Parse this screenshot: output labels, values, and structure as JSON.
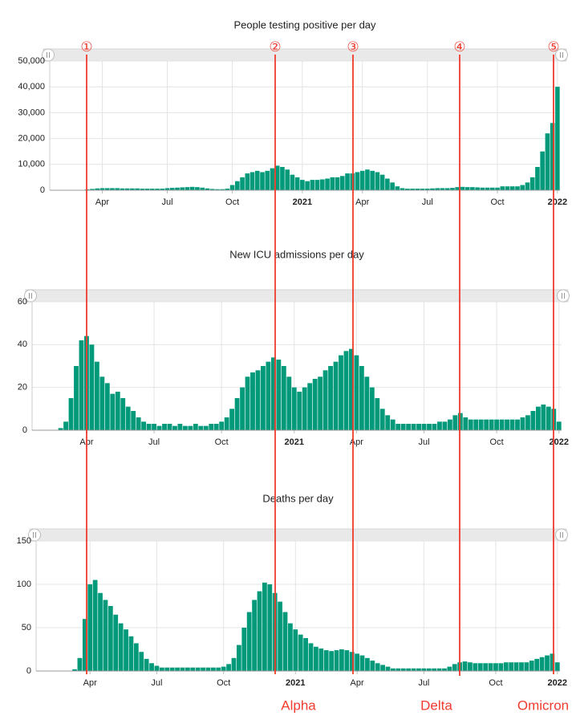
{
  "chart_data": [
    {
      "type": "bar",
      "title": "People testing positive per day",
      "color": "#009a7a",
      "grid": true,
      "ylim": [
        0,
        50000
      ],
      "yticks": [
        0,
        {
          "value": 10000,
          "label": "10,000"
        },
        {
          "value": 20000,
          "label": "20,000"
        },
        {
          "value": 30000,
          "label": "30,000"
        },
        {
          "value": 40000,
          "label": "40,000"
        },
        {
          "value": 50000,
          "label": "50,000"
        }
      ],
      "categories": [
        null,
        null,
        null,
        null,
        null,
        null,
        null,
        null,
        null,
        null,
        "Apr",
        null,
        null,
        null,
        null,
        null,
        null,
        null,
        null,
        null,
        null,
        null,
        null,
        "Jul",
        null,
        null,
        null,
        null,
        null,
        null,
        null,
        null,
        null,
        null,
        null,
        null,
        "Oct",
        null,
        null,
        null,
        null,
        null,
        null,
        null,
        null,
        null,
        null,
        null,
        null,
        null,
        "2021",
        null,
        null,
        null,
        null,
        null,
        null,
        null,
        null,
        null,
        null,
        null,
        "Apr",
        null,
        null,
        null,
        null,
        null,
        null,
        null,
        null,
        null,
        null,
        null,
        null,
        "Jul",
        null,
        null,
        null,
        null,
        null,
        null,
        null,
        null,
        null,
        null,
        null,
        null,
        null,
        "Oct",
        null,
        null,
        null,
        null,
        null,
        null,
        null,
        null,
        null,
        null,
        null,
        "2022"
      ],
      "values": [
        0,
        0,
        0,
        0,
        0,
        0,
        100,
        300,
        500,
        700,
        800,
        800,
        800,
        800,
        700,
        700,
        700,
        700,
        600,
        600,
        600,
        600,
        600,
        800,
        900,
        1000,
        1100,
        1200,
        1300,
        1200,
        1000,
        700,
        500,
        400,
        400,
        600,
        2000,
        3500,
        5000,
        6500,
        7000,
        7500,
        7000,
        7500,
        8500,
        9500,
        9000,
        8000,
        6000,
        5000,
        4000,
        3500,
        4000,
        4000,
        4200,
        4500,
        5000,
        5000,
        5500,
        6500,
        6500,
        7000,
        7500,
        8000,
        7500,
        7000,
        6000,
        4500,
        3000,
        1500,
        800,
        600,
        600,
        600,
        600,
        600,
        700,
        800,
        800,
        800,
        900,
        1200,
        1300,
        1200,
        1200,
        1100,
        1000,
        1000,
        1000,
        1000,
        1500,
        1500,
        1500,
        1500,
        2000,
        3000,
        5000,
        9000,
        15000,
        22000,
        26000,
        40000
      ]
    },
    {
      "type": "bar",
      "title": "New ICU admissions per day",
      "color": "#009a7a",
      "grid": true,
      "ylim": [
        0,
        60
      ],
      "yticks": [
        0,
        20,
        40,
        60
      ],
      "categories": [
        null,
        null,
        null,
        null,
        null,
        null,
        null,
        null,
        null,
        null,
        "Apr",
        null,
        null,
        null,
        null,
        null,
        null,
        null,
        null,
        null,
        null,
        null,
        null,
        "Jul",
        null,
        null,
        null,
        null,
        null,
        null,
        null,
        null,
        null,
        null,
        null,
        null,
        "Oct",
        null,
        null,
        null,
        null,
        null,
        null,
        null,
        null,
        null,
        null,
        null,
        null,
        null,
        "2021",
        null,
        null,
        null,
        null,
        null,
        null,
        null,
        null,
        null,
        null,
        null,
        "Apr",
        null,
        null,
        null,
        null,
        null,
        null,
        null,
        null,
        null,
        null,
        null,
        null,
        "Jul",
        null,
        null,
        null,
        null,
        null,
        null,
        null,
        null,
        null,
        null,
        null,
        null,
        null,
        "Oct",
        null,
        null,
        null,
        null,
        null,
        null,
        null,
        null,
        null,
        null,
        null,
        "2022"
      ],
      "values": [
        0,
        0,
        0,
        0,
        0,
        1,
        4,
        15,
        30,
        42,
        44,
        40,
        32,
        25,
        22,
        17,
        18,
        15,
        11,
        9,
        6,
        4,
        3,
        3,
        2,
        3,
        3,
        2,
        3,
        2,
        2,
        3,
        2,
        2,
        3,
        3,
        4,
        6,
        10,
        15,
        20,
        25,
        27,
        28,
        30,
        32,
        34,
        33,
        30,
        25,
        20,
        18,
        20,
        22,
        24,
        25,
        28,
        30,
        32,
        35,
        37,
        38,
        35,
        30,
        25,
        20,
        15,
        10,
        7,
        5,
        3,
        3,
        3,
        3,
        3,
        3,
        3,
        3,
        4,
        4,
        5,
        7,
        8,
        6,
        5,
        5,
        5,
        5,
        5,
        5,
        5,
        5,
        5,
        5,
        6,
        7,
        9,
        11,
        12,
        11,
        10,
        4
      ]
    },
    {
      "type": "bar",
      "title": "Deaths per day",
      "color": "#009a7a",
      "grid": true,
      "ylim": [
        0,
        150
      ],
      "yticks": [
        0,
        50,
        100,
        150
      ],
      "categories": [
        null,
        null,
        null,
        null,
        null,
        null,
        null,
        null,
        null,
        null,
        "Apr",
        null,
        null,
        null,
        null,
        null,
        null,
        null,
        null,
        null,
        null,
        null,
        null,
        "Jul",
        null,
        null,
        null,
        null,
        null,
        null,
        null,
        null,
        null,
        null,
        null,
        null,
        "Oct",
        null,
        null,
        null,
        null,
        null,
        null,
        null,
        null,
        null,
        null,
        null,
        null,
        null,
        "2021",
        null,
        null,
        null,
        null,
        null,
        null,
        null,
        null,
        null,
        null,
        null,
        "Apr",
        null,
        null,
        null,
        null,
        null,
        null,
        null,
        null,
        null,
        null,
        null,
        null,
        "Jul",
        null,
        null,
        null,
        null,
        null,
        null,
        null,
        null,
        null,
        null,
        null,
        null,
        null,
        "Oct",
        null,
        null,
        null,
        null,
        null,
        null,
        null,
        null,
        null,
        null,
        null,
        "2022"
      ],
      "values": [
        0,
        0,
        0,
        0,
        0,
        0,
        0,
        2,
        15,
        60,
        100,
        105,
        90,
        82,
        75,
        65,
        55,
        48,
        40,
        32,
        22,
        14,
        9,
        6,
        4,
        4,
        4,
        4,
        4,
        4,
        4,
        4,
        4,
        4,
        4,
        4,
        5,
        8,
        15,
        30,
        50,
        68,
        82,
        92,
        102,
        100,
        90,
        80,
        68,
        55,
        48,
        42,
        38,
        32,
        28,
        26,
        24,
        23,
        24,
        25,
        24,
        22,
        20,
        18,
        15,
        12,
        9,
        7,
        5,
        3,
        3,
        3,
        3,
        3,
        3,
        3,
        3,
        3,
        3,
        3,
        5,
        8,
        10,
        11,
        10,
        9,
        9,
        9,
        9,
        9,
        9,
        10,
        10,
        10,
        10,
        10,
        12,
        14,
        16,
        18,
        20,
        10
      ]
    }
  ],
  "annotations": [
    "①",
    "②",
    "③",
    "④",
    "⑤"
  ],
  "variants": [
    "Alpha",
    "Delta",
    "Omicron"
  ]
}
